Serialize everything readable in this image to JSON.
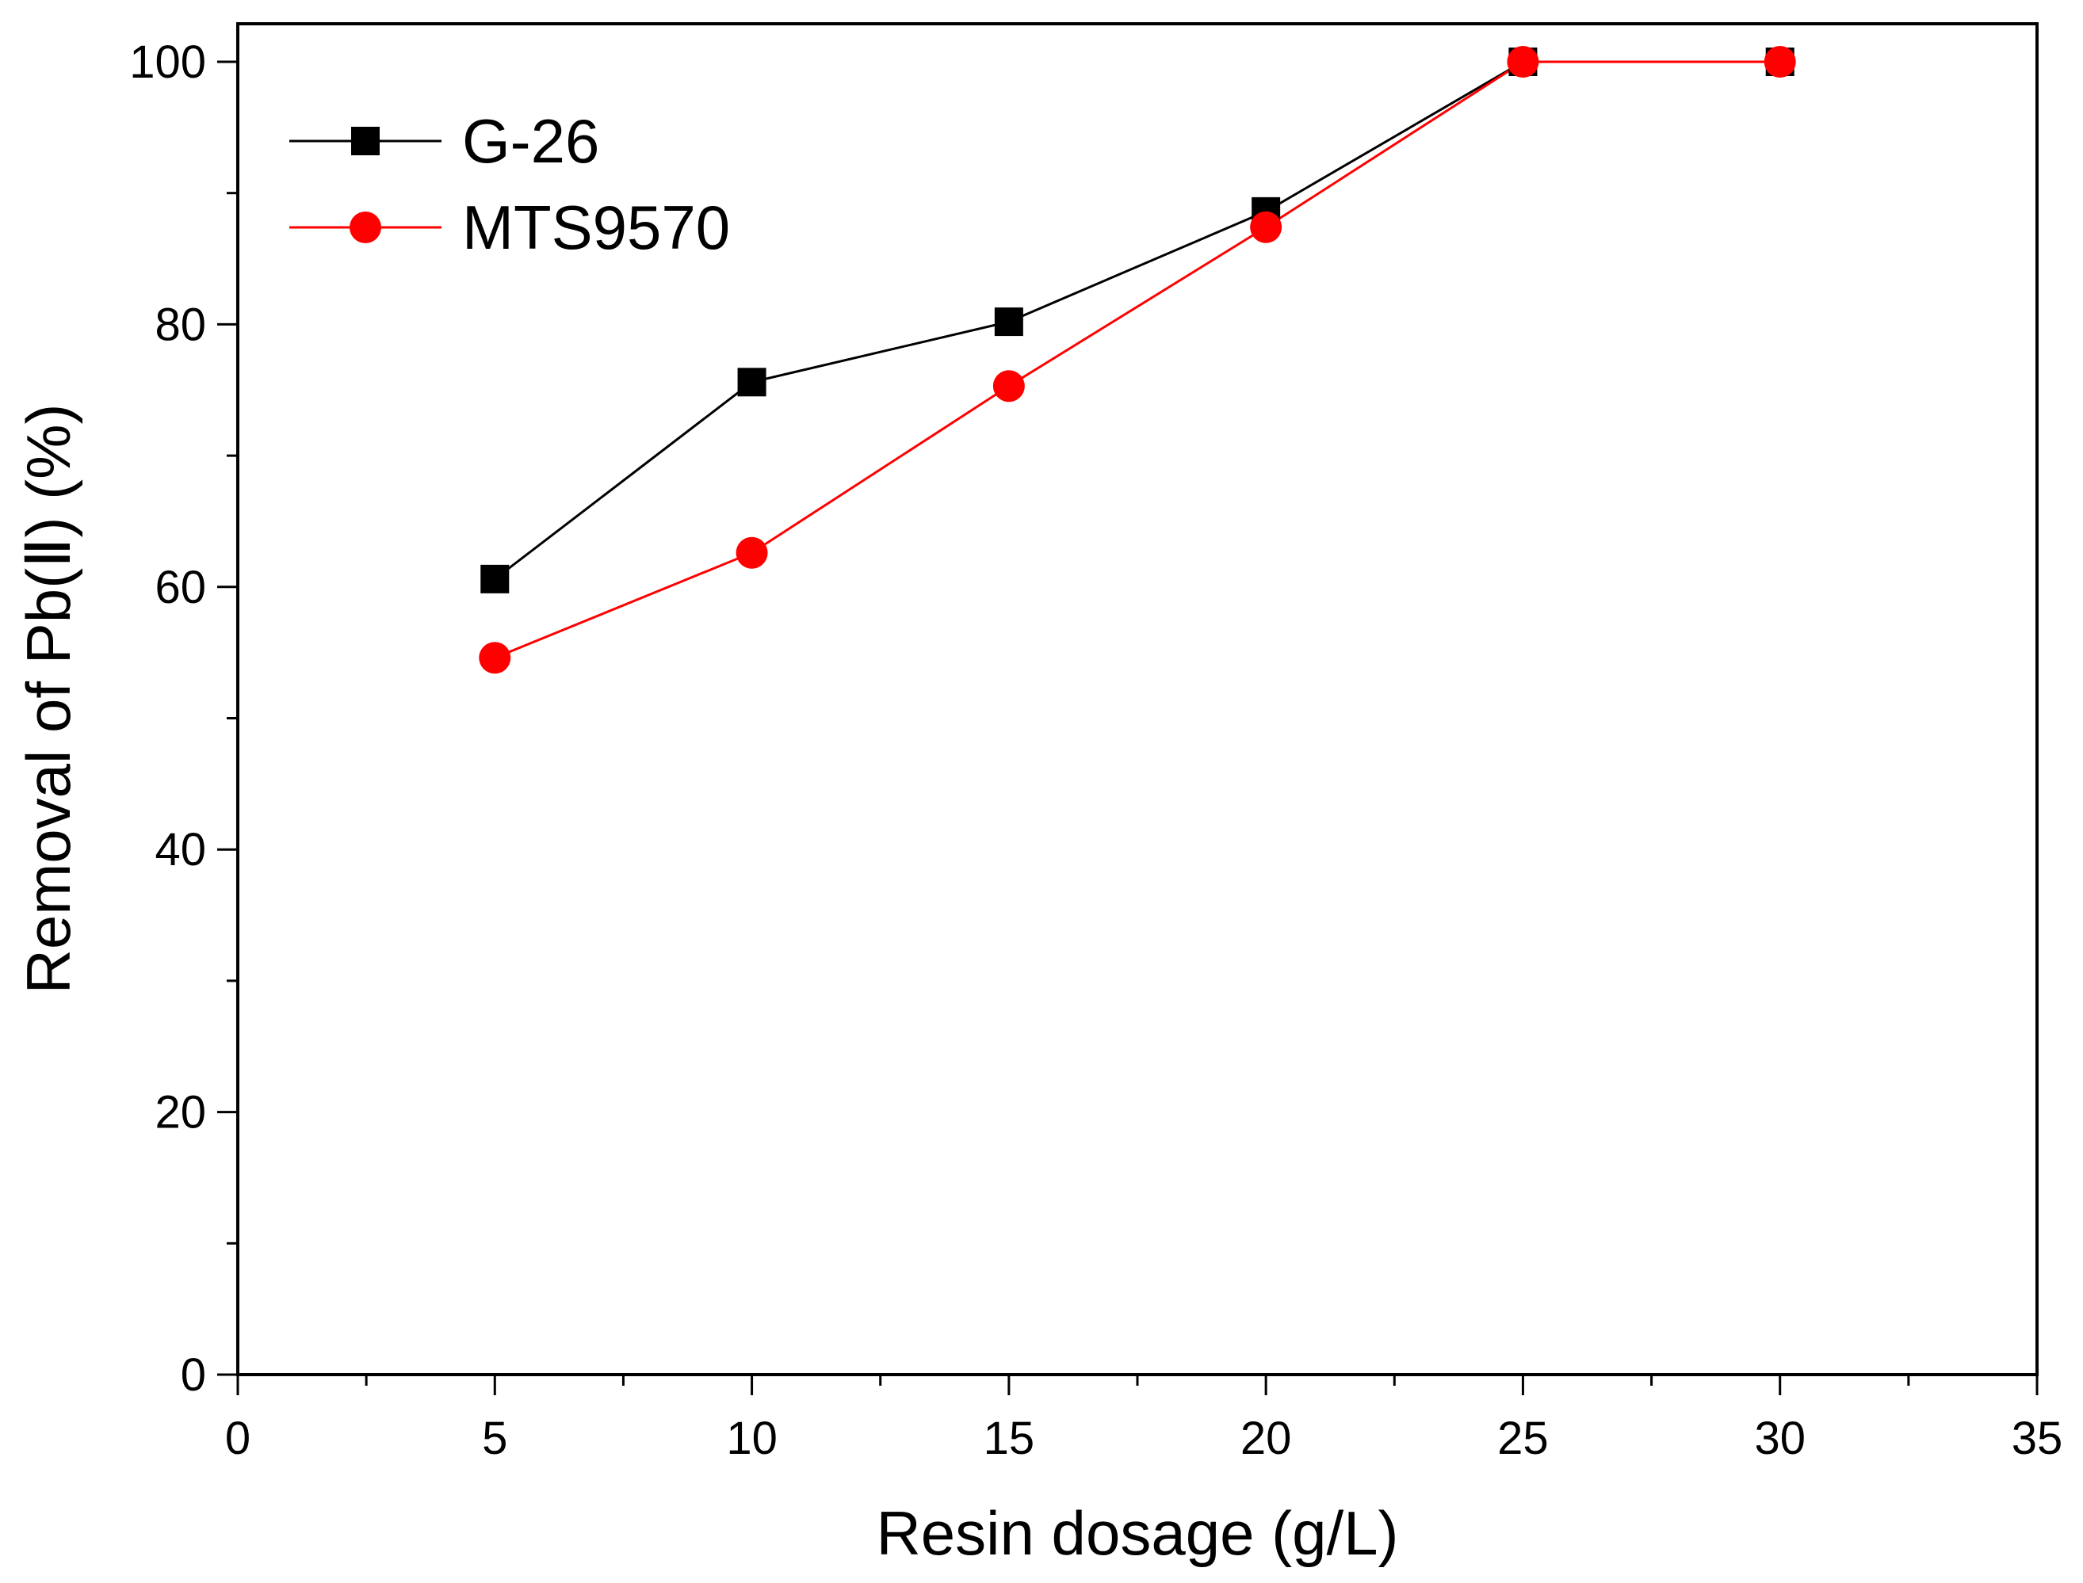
{
  "chart_data": {
    "type": "line",
    "title": "",
    "xlabel": "Resin dosage (g/L)",
    "ylabel": "Removal of Pb(Ⅱ) (%)",
    "xlim": [
      0,
      35
    ],
    "ylim": [
      0,
      100
    ],
    "xticks": [
      "0",
      "5",
      "10",
      "15",
      "20",
      "25",
      "30",
      "35"
    ],
    "yticks": [
      "0",
      "20",
      "40",
      "60",
      "80",
      "100"
    ],
    "grid": false,
    "legend_position": "top-left",
    "x": [
      5,
      10,
      15,
      20,
      25,
      30
    ],
    "series": [
      {
        "name": "G-26",
        "color": "#000000",
        "marker": "square",
        "values": [
          60.6,
          75.6,
          80.2,
          88.6,
          100,
          100
        ]
      },
      {
        "name": "MTS9570",
        "color": "#ff0000",
        "marker": "circle",
        "values": [
          54.6,
          62.6,
          75.3,
          87.4,
          100,
          100
        ]
      }
    ]
  }
}
